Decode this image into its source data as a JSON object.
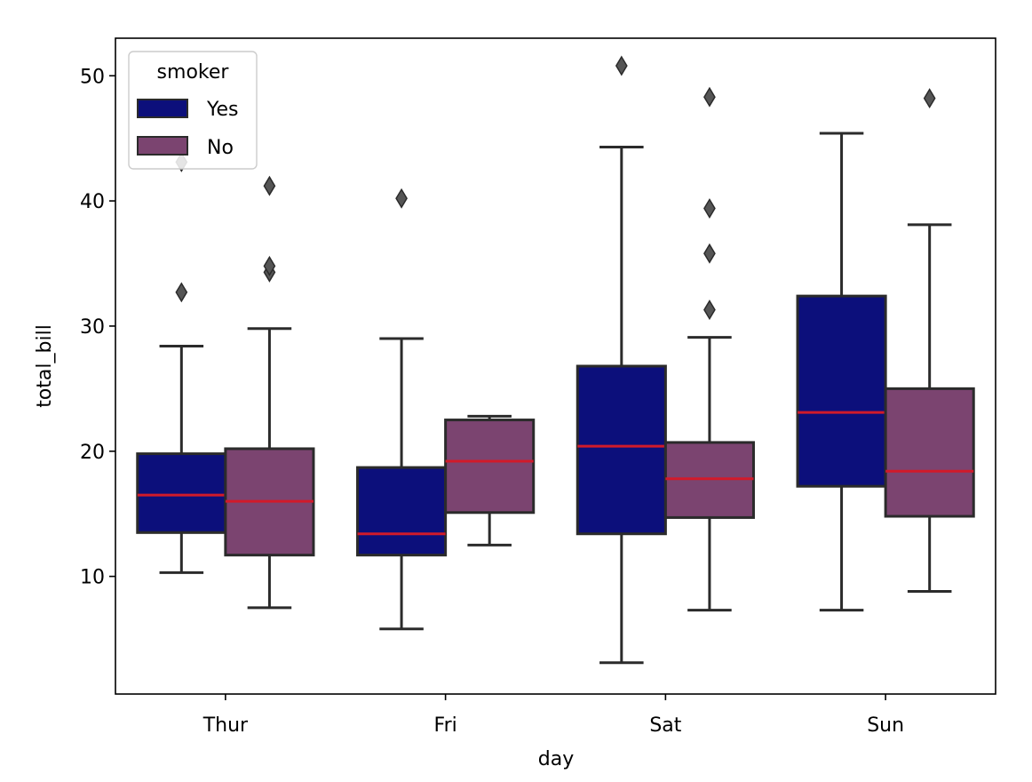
{
  "chart_data": {
    "type": "box",
    "xlabel": "day",
    "ylabel": "total_bill",
    "ylim": [
      0.6,
      53.0
    ],
    "yticks": [
      10,
      20,
      30,
      40,
      50
    ],
    "categories": [
      "Thur",
      "Fri",
      "Sat",
      "Sun"
    ],
    "legend": {
      "title": "smoker",
      "position": "upper-left"
    },
    "colors": {
      "Yes": "#0c0f7b",
      "No": "#7b4470",
      "median": "#d11a2a",
      "edge": "#2b2b2b",
      "flier": "#555555"
    },
    "series": [
      {
        "name": "Yes",
        "boxes": [
          {
            "category": "Thur",
            "whislo": 10.3,
            "q1": 13.5,
            "med": 16.5,
            "q3": 19.8,
            "whishi": 28.4,
            "fliers": [
              32.7,
              43.1
            ]
          },
          {
            "category": "Fri",
            "whislo": 5.8,
            "q1": 11.7,
            "med": 13.4,
            "q3": 18.7,
            "whishi": 29.0,
            "fliers": [
              40.2
            ]
          },
          {
            "category": "Sat",
            "whislo": 3.1,
            "q1": 13.4,
            "med": 20.4,
            "q3": 26.8,
            "whishi": 44.3,
            "fliers": [
              50.8
            ]
          },
          {
            "category": "Sun",
            "whislo": 7.3,
            "q1": 17.2,
            "med": 23.1,
            "q3": 32.4,
            "whishi": 45.4,
            "fliers": []
          }
        ]
      },
      {
        "name": "No",
        "boxes": [
          {
            "category": "Thur",
            "whislo": 7.5,
            "q1": 11.7,
            "med": 16.0,
            "q3": 20.2,
            "whishi": 29.8,
            "fliers": [
              34.3,
              34.8,
              41.2
            ]
          },
          {
            "category": "Fri",
            "whislo": 12.5,
            "q1": 15.1,
            "med": 19.2,
            "q3": 22.5,
            "whishi": 22.8,
            "fliers": []
          },
          {
            "category": "Sat",
            "whislo": 7.3,
            "q1": 14.7,
            "med": 17.8,
            "q3": 20.7,
            "whishi": 29.1,
            "fliers": [
              31.3,
              35.8,
              39.4,
              48.3
            ]
          },
          {
            "category": "Sun",
            "whislo": 8.8,
            "q1": 14.8,
            "med": 18.4,
            "q3": 25.0,
            "whishi": 38.1,
            "fliers": [
              48.2
            ]
          }
        ]
      }
    ]
  }
}
